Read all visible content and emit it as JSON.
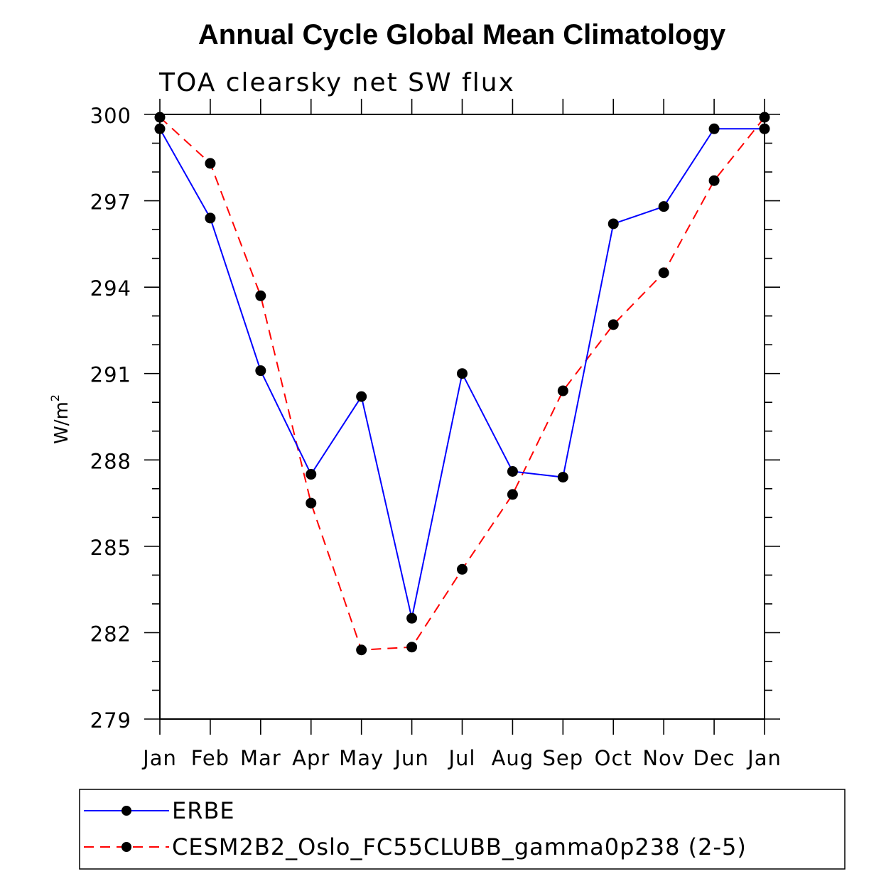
{
  "chart_data": {
    "type": "line",
    "title": "Annual Cycle Global Mean Climatology",
    "subtitle": "TOA clearsky net SW flux",
    "xlabel": "",
    "ylabel": "W/m",
    "ylabel_superscript": "2",
    "categories": [
      "Jan",
      "Feb",
      "Mar",
      "Apr",
      "May",
      "Jun",
      "Jul",
      "Aug",
      "Sep",
      "Oct",
      "Nov",
      "Dec",
      "Jan"
    ],
    "ylim": [
      279,
      300
    ],
    "yticks": [
      279,
      282,
      285,
      288,
      291,
      294,
      297,
      300
    ],
    "yminor_step": 1,
    "grid": false,
    "legend_position": "bottom",
    "series": [
      {
        "name": "ERBE",
        "color": "#0000ff",
        "style": "solid",
        "marker": "filled-circle",
        "values": [
          299.5,
          296.4,
          291.1,
          287.5,
          290.2,
          282.5,
          291.0,
          287.6,
          287.4,
          296.2,
          296.8,
          299.5,
          299.5
        ]
      },
      {
        "name": "CESM2B2_Oslo_FC55CLUBB_gamma0p238 (2-5)",
        "color": "#ff0000",
        "style": "dashed",
        "marker": "filled-circle",
        "values": [
          299.9,
          298.3,
          293.7,
          286.5,
          281.4,
          281.5,
          284.2,
          286.8,
          290.4,
          292.7,
          294.5,
          297.7,
          299.9
        ]
      }
    ]
  }
}
